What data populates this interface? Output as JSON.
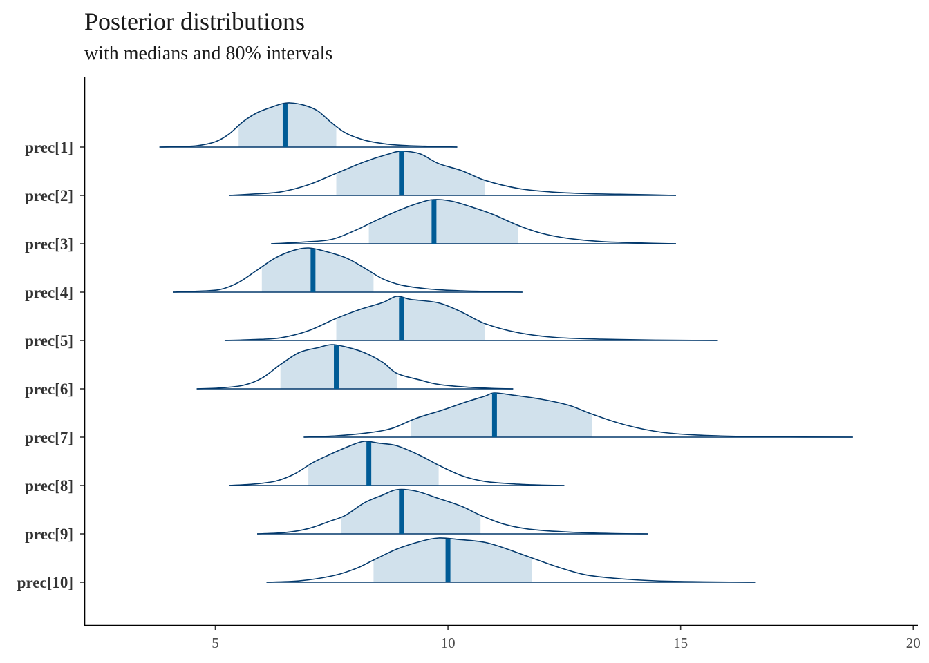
{
  "chart_data": {
    "type": "area",
    "title": "Posterior distributions",
    "subtitle": "with medians and 80% intervals",
    "xlabel": "",
    "ylabel": "",
    "xlim": [
      2.2,
      20.1
    ],
    "x_ticks": [
      5,
      10,
      15,
      20
    ],
    "grid": false,
    "legend": "none",
    "colors": {
      "fill": "#d1e1ec",
      "line": "#03396c",
      "median": "#005b96"
    },
    "parameters": [
      {
        "label": "prec[1]",
        "min": 3.8,
        "max": 10.2,
        "low": 5.5,
        "median": 6.5,
        "high": 7.6,
        "density": [
          [
            3.8,
            0
          ],
          [
            4.2,
            0.01
          ],
          [
            4.6,
            0.03
          ],
          [
            5.0,
            0.12
          ],
          [
            5.3,
            0.3
          ],
          [
            5.6,
            0.58
          ],
          [
            5.9,
            0.78
          ],
          [
            6.2,
            0.9
          ],
          [
            6.4,
            0.97
          ],
          [
            6.6,
            1.0
          ],
          [
            6.9,
            0.95
          ],
          [
            7.2,
            0.82
          ],
          [
            7.5,
            0.55
          ],
          [
            7.8,
            0.32
          ],
          [
            8.2,
            0.16
          ],
          [
            8.6,
            0.08
          ],
          [
            9.0,
            0.04
          ],
          [
            9.5,
            0.02
          ],
          [
            10.2,
            0
          ]
        ]
      },
      {
        "label": "prec[2]",
        "min": 5.3,
        "max": 14.9,
        "low": 7.6,
        "median": 9.0,
        "high": 10.8,
        "density": [
          [
            5.3,
            0
          ],
          [
            5.8,
            0.03
          ],
          [
            6.4,
            0.08
          ],
          [
            7.0,
            0.24
          ],
          [
            7.6,
            0.5
          ],
          [
            8.2,
            0.76
          ],
          [
            8.7,
            0.93
          ],
          [
            9.0,
            1.0
          ],
          [
            9.4,
            0.94
          ],
          [
            9.8,
            0.72
          ],
          [
            10.3,
            0.56
          ],
          [
            10.8,
            0.34
          ],
          [
            11.5,
            0.16
          ],
          [
            12.2,
            0.08
          ],
          [
            13.0,
            0.04
          ],
          [
            14.0,
            0.02
          ],
          [
            14.9,
            0
          ]
        ]
      },
      {
        "label": "prec[3]",
        "min": 6.2,
        "max": 14.9,
        "low": 8.3,
        "median": 9.7,
        "high": 11.5,
        "density": [
          [
            6.2,
            0
          ],
          [
            6.9,
            0.04
          ],
          [
            7.5,
            0.1
          ],
          [
            8.0,
            0.3
          ],
          [
            8.5,
            0.55
          ],
          [
            9.0,
            0.78
          ],
          [
            9.4,
            0.93
          ],
          [
            9.7,
            1.0
          ],
          [
            10.1,
            0.96
          ],
          [
            10.6,
            0.8
          ],
          [
            11.0,
            0.65
          ],
          [
            11.5,
            0.42
          ],
          [
            12.0,
            0.24
          ],
          [
            12.6,
            0.12
          ],
          [
            13.3,
            0.05
          ],
          [
            14.1,
            0.02
          ],
          [
            14.9,
            0
          ]
        ]
      },
      {
        "label": "prec[4]",
        "min": 4.1,
        "max": 11.6,
        "low": 6.0,
        "median": 7.1,
        "high": 8.4,
        "density": [
          [
            4.1,
            0
          ],
          [
            4.6,
            0.02
          ],
          [
            5.1,
            0.06
          ],
          [
            5.5,
            0.22
          ],
          [
            5.9,
            0.5
          ],
          [
            6.3,
            0.78
          ],
          [
            6.7,
            0.95
          ],
          [
            7.0,
            1.0
          ],
          [
            7.3,
            0.94
          ],
          [
            7.8,
            0.78
          ],
          [
            8.2,
            0.55
          ],
          [
            8.6,
            0.3
          ],
          [
            9.0,
            0.16
          ],
          [
            9.6,
            0.07
          ],
          [
            10.3,
            0.03
          ],
          [
            11.0,
            0.01
          ],
          [
            11.6,
            0
          ]
        ]
      },
      {
        "label": "prec[5]",
        "min": 5.2,
        "max": 15.8,
        "low": 7.6,
        "median": 9.0,
        "high": 10.8,
        "density": [
          [
            5.2,
            0
          ],
          [
            5.8,
            0.02
          ],
          [
            6.4,
            0.06
          ],
          [
            7.0,
            0.22
          ],
          [
            7.6,
            0.5
          ],
          [
            8.1,
            0.7
          ],
          [
            8.6,
            0.86
          ],
          [
            8.9,
            1.0
          ],
          [
            9.2,
            0.93
          ],
          [
            9.8,
            0.85
          ],
          [
            10.3,
            0.64
          ],
          [
            10.8,
            0.38
          ],
          [
            11.5,
            0.18
          ],
          [
            12.3,
            0.07
          ],
          [
            13.3,
            0.03
          ],
          [
            14.5,
            0.01
          ],
          [
            15.8,
            0
          ]
        ]
      },
      {
        "label": "prec[6]",
        "min": 4.6,
        "max": 11.4,
        "low": 6.4,
        "median": 7.6,
        "high": 8.9,
        "density": [
          [
            4.6,
            0
          ],
          [
            5.1,
            0.02
          ],
          [
            5.6,
            0.08
          ],
          [
            6.0,
            0.24
          ],
          [
            6.4,
            0.55
          ],
          [
            6.8,
            0.82
          ],
          [
            7.2,
            0.93
          ],
          [
            7.5,
            1.0
          ],
          [
            7.8,
            0.95
          ],
          [
            8.2,
            0.82
          ],
          [
            8.6,
            0.6
          ],
          [
            8.9,
            0.35
          ],
          [
            9.4,
            0.2
          ],
          [
            9.8,
            0.1
          ],
          [
            10.4,
            0.04
          ],
          [
            11.0,
            0.01
          ],
          [
            11.4,
            0
          ]
        ]
      },
      {
        "label": "prec[7]",
        "min": 6.9,
        "max": 18.7,
        "low": 9.2,
        "median": 11.0,
        "high": 13.1,
        "density": [
          [
            6.9,
            0
          ],
          [
            7.6,
            0.03
          ],
          [
            8.3,
            0.1
          ],
          [
            8.8,
            0.2
          ],
          [
            9.3,
            0.42
          ],
          [
            9.9,
            0.62
          ],
          [
            10.4,
            0.8
          ],
          [
            10.8,
            0.93
          ],
          [
            11.0,
            1.0
          ],
          [
            11.4,
            0.95
          ],
          [
            12.0,
            0.86
          ],
          [
            12.6,
            0.72
          ],
          [
            13.1,
            0.52
          ],
          [
            13.8,
            0.28
          ],
          [
            14.6,
            0.11
          ],
          [
            15.5,
            0.04
          ],
          [
            16.8,
            0.01
          ],
          [
            18.7,
            0
          ]
        ]
      },
      {
        "label": "prec[8]",
        "min": 5.3,
        "max": 12.5,
        "low": 7.0,
        "median": 8.3,
        "high": 9.8,
        "density": [
          [
            5.3,
            0
          ],
          [
            5.8,
            0.03
          ],
          [
            6.3,
            0.1
          ],
          [
            6.7,
            0.26
          ],
          [
            7.1,
            0.52
          ],
          [
            7.5,
            0.72
          ],
          [
            7.9,
            0.9
          ],
          [
            8.2,
            1.0
          ],
          [
            8.5,
            0.96
          ],
          [
            8.9,
            0.9
          ],
          [
            9.4,
            0.68
          ],
          [
            9.8,
            0.46
          ],
          [
            10.3,
            0.22
          ],
          [
            10.8,
            0.09
          ],
          [
            11.5,
            0.03
          ],
          [
            12.0,
            0.01
          ],
          [
            12.5,
            0
          ]
        ]
      },
      {
        "label": "prec[9]",
        "min": 5.9,
        "max": 14.3,
        "low": 7.7,
        "median": 9.0,
        "high": 10.7,
        "density": [
          [
            5.9,
            0
          ],
          [
            6.5,
            0.03
          ],
          [
            7.0,
            0.12
          ],
          [
            7.5,
            0.3
          ],
          [
            7.8,
            0.42
          ],
          [
            8.2,
            0.7
          ],
          [
            8.6,
            0.88
          ],
          [
            8.9,
            1.0
          ],
          [
            9.3,
            0.97
          ],
          [
            9.8,
            0.8
          ],
          [
            10.3,
            0.62
          ],
          [
            10.7,
            0.42
          ],
          [
            11.2,
            0.22
          ],
          [
            11.8,
            0.1
          ],
          [
            12.6,
            0.04
          ],
          [
            13.5,
            0.01
          ],
          [
            14.3,
            0
          ]
        ]
      },
      {
        "label": "prec[10]",
        "min": 6.1,
        "max": 16.6,
        "low": 8.4,
        "median": 10.0,
        "high": 11.8,
        "density": [
          [
            6.1,
            0
          ],
          [
            6.8,
            0.03
          ],
          [
            7.5,
            0.14
          ],
          [
            8.0,
            0.3
          ],
          [
            8.4,
            0.5
          ],
          [
            8.9,
            0.75
          ],
          [
            9.4,
            0.92
          ],
          [
            9.8,
            1.0
          ],
          [
            10.2,
            0.97
          ],
          [
            10.8,
            0.9
          ],
          [
            11.3,
            0.74
          ],
          [
            11.8,
            0.55
          ],
          [
            12.4,
            0.33
          ],
          [
            13.0,
            0.16
          ],
          [
            13.8,
            0.07
          ],
          [
            14.8,
            0.02
          ],
          [
            16.6,
            0
          ]
        ]
      }
    ]
  }
}
